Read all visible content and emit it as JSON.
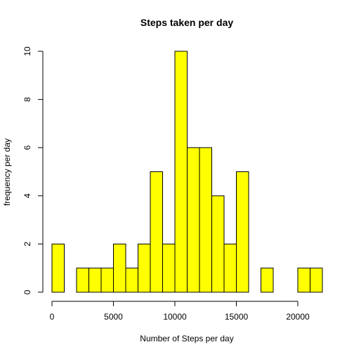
{
  "chart_data": {
    "type": "bar",
    "title": "Steps taken per day",
    "xlabel": "Number of Steps per day",
    "ylabel": "frequency per day",
    "bin_width": 1000,
    "bin_starts": [
      0,
      1000,
      2000,
      3000,
      4000,
      5000,
      6000,
      7000,
      8000,
      9000,
      10000,
      11000,
      12000,
      13000,
      14000,
      15000,
      16000,
      17000,
      18000,
      19000,
      20000,
      21000
    ],
    "values": [
      2,
      0,
      1,
      1,
      1,
      2,
      1,
      2,
      5,
      2,
      10,
      6,
      6,
      4,
      2,
      5,
      0,
      1,
      0,
      0,
      1,
      1
    ],
    "xlim": [
      0,
      22000
    ],
    "ylim": [
      0,
      10
    ],
    "x_ticks": [
      0,
      5000,
      10000,
      15000,
      20000
    ],
    "y_ticks": [
      0,
      2,
      4,
      6,
      8,
      10
    ],
    "bar_color": "#ffff00",
    "bar_border_color": "#000000",
    "grid": false,
    "legend": "none"
  }
}
